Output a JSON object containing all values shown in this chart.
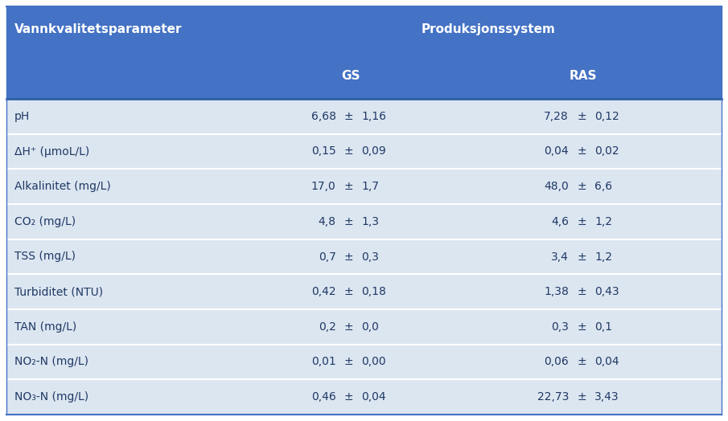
{
  "header_main": "Produksjonssystem",
  "header_col1": "Vannkvalitetsparameter",
  "header_col2": "GS",
  "header_col3": "RAS",
  "rows": [
    {
      "param": "pH",
      "gs_val": "6,68",
      "gs_err": "1,16",
      "ras_val": "7,28",
      "ras_err": "0,12"
    },
    {
      "param": "ΔH⁺ (μmoL/L)",
      "gs_val": "0,15",
      "gs_err": "0,09",
      "ras_val": "0,04",
      "ras_err": "0,02"
    },
    {
      "param": "Alkalinitet (mg/L)",
      "gs_val": "17,0",
      "gs_err": "1,7",
      "ras_val": "48,0",
      "ras_err": "6,6"
    },
    {
      "param": "CO₂ (mg/L)",
      "gs_val": "4,8",
      "gs_err": "1,3",
      "ras_val": "4,6",
      "ras_err": "1,2"
    },
    {
      "param": "TSS (mg/L)",
      "gs_val": "0,7",
      "gs_err": "0,3",
      "ras_val": "3,4",
      "ras_err": "1,2"
    },
    {
      "param": "Turbiditet (NTU)",
      "gs_val": "0,42",
      "gs_err": "0,18",
      "ras_val": "1,38",
      "ras_err": "0,43"
    },
    {
      "param": "TAN (mg/L)",
      "gs_val": "0,2",
      "gs_err": "0,0",
      "ras_val": "0,3",
      "ras_err": "0,1"
    },
    {
      "param": "NO₂-N (mg/L)",
      "gs_val": "0,01",
      "gs_err": "0,00",
      "ras_val": "0,06",
      "ras_err": "0,04"
    },
    {
      "param": "NO₃-N (mg/L)",
      "gs_val": "0,46",
      "gs_err": "0,04",
      "ras_val": "22,73",
      "ras_err": "3,43"
    }
  ],
  "header_bg": "#4472C4",
  "header_text_color": "#FFFFFF",
  "row_bg": "#DCE6F1",
  "row_divider_color": "#FFFFFF",
  "border_color": "#4472C4",
  "text_color": "#1F3864",
  "pm_symbol": "±",
  "font_size_header_main": 11,
  "font_size_header_sub": 11,
  "font_size_col1_header": 11,
  "font_size_row": 10,
  "fig_width": 9.05,
  "fig_height": 5.24,
  "dpi": 100
}
